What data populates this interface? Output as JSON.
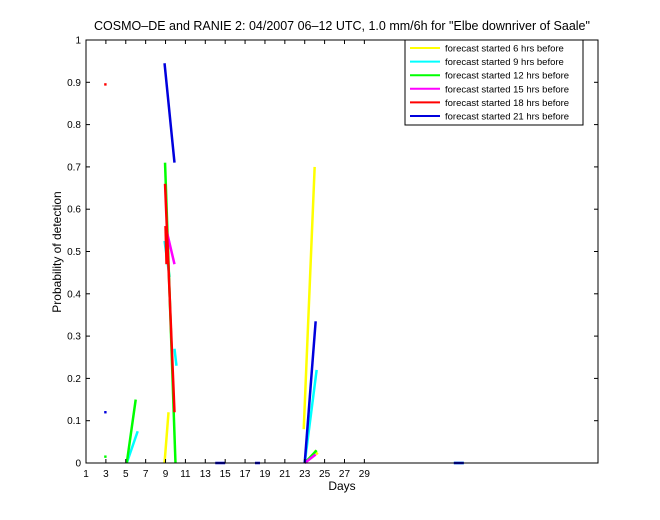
{
  "chart_data": {
    "type": "line",
    "title": "COSMO–DE and RANIE 2: 04/2007 06–12 UTC, 1.0 mm/6h for \"Elbe downriver of Saale\"",
    "xlabel": "Days",
    "ylabel": "Probability of detection",
    "xlim": [
      1,
      52.5
    ],
    "ylim": [
      0,
      1
    ],
    "x_ticks": [
      1,
      3,
      5,
      7,
      9,
      11,
      13,
      15,
      17,
      19,
      21,
      23,
      25,
      27,
      29
    ],
    "y_ticks": [
      0,
      0.1,
      0.2,
      0.3,
      0.4,
      0.5,
      0.6,
      0.7,
      0.8,
      0.9,
      1
    ],
    "y_tick_labels": [
      "0",
      "0.1",
      "0.2",
      "0.3",
      "0.4",
      "0.5",
      "0.6",
      "0.7",
      "0.8",
      "0.9",
      "1"
    ],
    "grid": false,
    "legend_position": "top-right",
    "series": [
      {
        "name": "forecast started 6 hrs before",
        "color": "#ffff00",
        "segments": [
          [
            [
              8.9,
              0.0
            ],
            [
              9.3,
              0.12
            ]
          ],
          [
            [
              22.9,
              0.08
            ],
            [
              24.0,
              0.7
            ]
          ],
          [
            [
              24.0,
              0.03
            ],
            [
              24.3,
              0.02
            ]
          ]
        ],
        "points": []
      },
      {
        "name": "forecast started 9 hrs before",
        "color": "#00ffff",
        "segments": [
          [
            [
              5.1,
              0.0
            ],
            [
              6.2,
              0.075
            ]
          ],
          [
            [
              8.9,
              0.525
            ],
            [
              9.4,
              0.44
            ]
          ],
          [
            [
              9.9,
              0.27
            ],
            [
              10.1,
              0.23
            ]
          ],
          [
            [
              23.0,
              0.0
            ],
            [
              24.2,
              0.22
            ]
          ],
          [
            [
              38.0,
              0.0
            ],
            [
              39.0,
              0.0
            ]
          ]
        ],
        "points": []
      },
      {
        "name": "forecast started 12 hrs before",
        "color": "#00ff00",
        "segments": [
          [
            [
              5.1,
              0.0
            ],
            [
              6.0,
              0.15
            ]
          ],
          [
            [
              8.95,
              0.71
            ],
            [
              10.0,
              0.0
            ]
          ],
          [
            [
              23.0,
              0.0
            ],
            [
              24.2,
              0.03
            ]
          ]
        ],
        "points": [
          [
            2.95,
            0.015
          ]
        ]
      },
      {
        "name": "forecast started 15 hrs before",
        "color": "#ff00ff",
        "segments": [
          [
            [
              9.0,
              0.56
            ],
            [
              9.9,
              0.47
            ]
          ],
          [
            [
              23.0,
              0.0
            ],
            [
              24.1,
              0.02
            ]
          ]
        ],
        "points": []
      },
      {
        "name": "forecast started 18 hrs before",
        "color": "#ff0000",
        "segments": [
          [
            [
              8.95,
              0.66
            ],
            [
              9.9,
              0.12
            ]
          ],
          [
            [
              9.0,
              0.56
            ],
            [
              9.1,
              0.47
            ]
          ]
        ],
        "points": [
          [
            2.95,
            0.895
          ]
        ]
      },
      {
        "name": "forecast started 21 hrs before",
        "color": "#0000dd",
        "segments": [
          [
            [
              8.9,
              0.945
            ],
            [
              9.9,
              0.71
            ]
          ],
          [
            [
              23.0,
              0.0
            ],
            [
              24.1,
              0.335
            ]
          ],
          [
            [
              14.0,
              0.0
            ],
            [
              15.0,
              0.0
            ]
          ],
          [
            [
              18.0,
              0.0
            ],
            [
              18.5,
              0.0
            ]
          ],
          [
            [
              38.0,
              0.0
            ],
            [
              39.0,
              0.0
            ]
          ]
        ],
        "points": [
          [
            2.95,
            0.12
          ]
        ]
      }
    ]
  }
}
